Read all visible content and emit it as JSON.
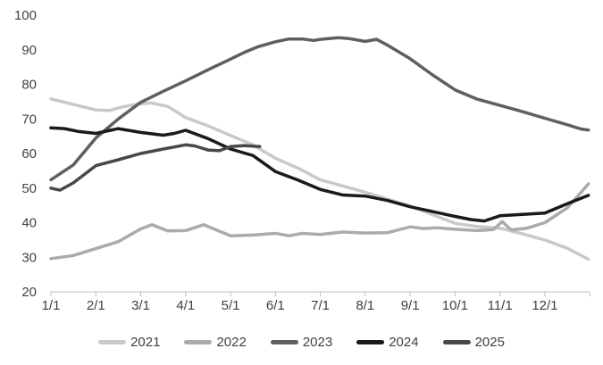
{
  "chart_data": {
    "type": "line",
    "title": "",
    "xlabel": "",
    "ylabel": "",
    "grid": false,
    "background": "#ffffff",
    "axis_color": "#bfbfbf",
    "label_color": "#404040",
    "x_axis": {
      "tick_labels": [
        "1/1",
        "2/1",
        "3/1",
        "4/1",
        "5/1",
        "6/1",
        "7/1",
        "8/1",
        "9/1",
        "10/1",
        "11/1",
        "12/1"
      ],
      "tick_months": [
        1,
        2,
        3,
        4,
        5,
        6,
        7,
        8,
        9,
        10,
        11,
        12
      ],
      "range_months": [
        1,
        13
      ]
    },
    "y_axis": {
      "ticks": [
        20,
        30,
        40,
        50,
        60,
        70,
        80,
        90,
        100
      ],
      "min": 20,
      "max": 100
    },
    "legend": {
      "position": "bottom",
      "entries": [
        "2021",
        "2022",
        "2023",
        "2024",
        "2025"
      ]
    },
    "series": [
      {
        "name": "2021",
        "color": "#c9c9c9",
        "x": [
          1,
          1.5,
          2,
          2.3,
          2.6,
          3,
          3.25,
          3.6,
          4,
          4.5,
          5,
          5.5,
          6,
          6.5,
          7,
          7.5,
          8,
          8.5,
          9,
          9.5,
          10,
          10.5,
          11,
          11.5,
          12,
          12.5,
          12.97
        ],
        "values": [
          75.8,
          74.2,
          72.6,
          72.4,
          73.5,
          74.4,
          74.6,
          73.6,
          70.4,
          68.0,
          65.2,
          62.5,
          58.6,
          55.8,
          52.4,
          50.6,
          48.8,
          46.8,
          44.8,
          42.3,
          39.8,
          38.9,
          38.4,
          36.8,
          35.0,
          32.6,
          29.4
        ]
      },
      {
        "name": "2022",
        "color": "#ababab",
        "x": [
          1,
          1.5,
          2,
          2.5,
          3,
          3.25,
          3.6,
          4,
          4.4,
          5,
          5.5,
          6,
          6.3,
          6.6,
          7,
          7.5,
          8,
          8.5,
          9,
          9.3,
          9.6,
          10,
          10.5,
          10.85,
          11.05,
          11.25,
          11.6,
          12,
          12.5,
          12.97
        ],
        "values": [
          29.6,
          30.5,
          32.5,
          34.5,
          38.2,
          39.4,
          37.6,
          37.7,
          39.4,
          36.2,
          36.4,
          36.9,
          36.2,
          36.9,
          36.6,
          37.3,
          37.0,
          37.1,
          38.8,
          38.3,
          38.5,
          38.1,
          37.7,
          38.0,
          40.3,
          37.9,
          38.4,
          40.0,
          44.3,
          51.2
        ]
      },
      {
        "name": "2023",
        "color": "#5f5f5f",
        "x": [
          1,
          1.5,
          2,
          2.5,
          3,
          3.5,
          4,
          4.5,
          5,
          5.3,
          5.6,
          6,
          6.3,
          6.6,
          6.85,
          7,
          7.4,
          7.65,
          8,
          8.25,
          8.5,
          9,
          9.5,
          10,
          10.5,
          11,
          11.5,
          12,
          12.5,
          12.8,
          12.97
        ],
        "values": [
          52.4,
          56.7,
          64.5,
          70.0,
          74.8,
          78.0,
          81.0,
          84.2,
          87.3,
          89.2,
          90.8,
          92.3,
          93.1,
          93.1,
          92.7,
          93.0,
          93.5,
          93.2,
          92.4,
          93.0,
          91.3,
          87.4,
          82.7,
          78.4,
          75.7,
          73.9,
          72.1,
          70.2,
          68.3,
          67.1,
          66.8
        ]
      },
      {
        "name": "2024",
        "color": "#1a1a1a",
        "x": [
          1,
          1.3,
          1.6,
          2,
          2.5,
          3,
          3.5,
          3.75,
          4,
          4.5,
          5,
          5.5,
          6,
          6.5,
          7,
          7.5,
          8,
          8.5,
          9,
          9.5,
          10,
          10.35,
          10.65,
          11,
          11.5,
          12,
          12.5,
          12.97
        ],
        "values": [
          67.4,
          67.2,
          66.4,
          65.8,
          67.2,
          66.1,
          65.3,
          65.8,
          66.7,
          64.3,
          61.3,
          59.4,
          54.8,
          52.3,
          49.6,
          48.0,
          47.7,
          46.4,
          44.6,
          43.2,
          41.8,
          40.9,
          40.5,
          42.0,
          42.4,
          42.8,
          45.5,
          47.9
        ]
      },
      {
        "name": "2025",
        "color": "#484848",
        "x": [
          1,
          1.2,
          1.5,
          2,
          2.5,
          3,
          3.5,
          4,
          4.2,
          4.5,
          4.75,
          5,
          5.3,
          5.65
        ],
        "values": [
          50.0,
          49.4,
          51.5,
          56.5,
          58.2,
          60.0,
          61.3,
          62.5,
          62.2,
          61.0,
          60.8,
          62.0,
          62.3,
          62.0
        ]
      }
    ]
  }
}
